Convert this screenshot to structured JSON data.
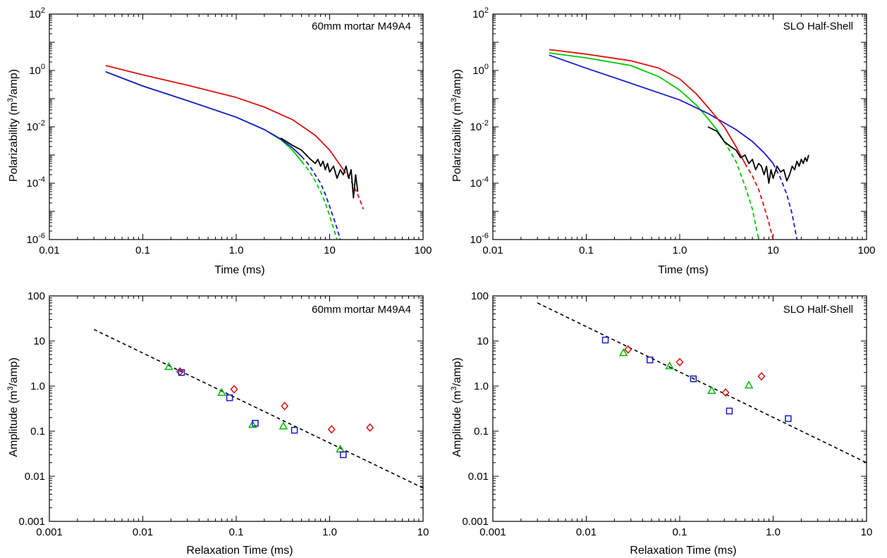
{
  "chart_data": [
    {
      "type": "line",
      "annotation": "60mm mortar M49A4",
      "xlabel": "Time (ms)",
      "ylabel_main": "Polarizability (m",
      "ylabel_sup": "3",
      "ylabel_tail": "/amp)",
      "xscale": "log",
      "yscale": "log",
      "xlim": [
        0.01,
        100
      ],
      "ylim": [
        1e-06,
        100
      ],
      "x_ticks": [
        {
          "v": 0.01,
          "label": "0.01"
        },
        {
          "v": 0.1,
          "label": "0.1"
        },
        {
          "v": 1,
          "label": "1.0"
        },
        {
          "v": 10,
          "label": "10"
        },
        {
          "v": 100,
          "label": "100"
        }
      ],
      "y_ticks": [
        {
          "v": 1e-06,
          "base": "10",
          "exp": "-6"
        },
        {
          "v": 0.0001,
          "base": "10",
          "exp": "-4"
        },
        {
          "v": 0.01,
          "base": "10",
          "exp": "-2"
        },
        {
          "v": 1,
          "base": "10",
          "exp": "0"
        },
        {
          "v": 100,
          "base": "10",
          "exp": "2"
        }
      ],
      "series": [
        {
          "color": "#00cc00",
          "dash": false,
          "points": [
            [
              0.04,
              0.9
            ],
            [
              0.1,
              0.28
            ],
            [
              0.3,
              0.085
            ],
            [
              1,
              0.022
            ],
            [
              2,
              0.008
            ],
            [
              3,
              0.0035
            ],
            [
              4,
              0.0015
            ],
            [
              5,
              0.0006
            ]
          ]
        },
        {
          "color": "#00cc00",
          "dash": true,
          "points": [
            [
              5,
              0.0006
            ],
            [
              6,
              0.00028
            ],
            [
              7,
              0.00012
            ],
            [
              8,
              5e-05
            ],
            [
              9,
              2e-05
            ],
            [
              10,
              7e-06
            ],
            [
              11,
              2.5e-06
            ],
            [
              12,
              1e-06
            ]
          ]
        },
        {
          "color": "#1a1acc",
          "dash": false,
          "points": [
            [
              0.04,
              0.9
            ],
            [
              0.1,
              0.28
            ],
            [
              0.3,
              0.085
            ],
            [
              1,
              0.022
            ],
            [
              2,
              0.008
            ],
            [
              3,
              0.0037
            ],
            [
              4,
              0.0018
            ],
            [
              5,
              0.0009
            ]
          ]
        },
        {
          "color": "#1a1acc",
          "dash": true,
          "points": [
            [
              5,
              0.0009
            ],
            [
              6,
              0.00045
            ],
            [
              7,
              0.0002
            ],
            [
              8,
              0.0001
            ],
            [
              9,
              4e-05
            ],
            [
              10,
              1.5e-05
            ],
            [
              11,
              6e-06
            ],
            [
              12,
              2.5e-06
            ],
            [
              13,
              1e-06
            ]
          ]
        },
        {
          "color": "#dd1111",
          "dash": false,
          "points": [
            [
              0.04,
              1.5
            ],
            [
              0.1,
              0.7
            ],
            [
              0.3,
              0.3
            ],
            [
              1,
              0.11
            ],
            [
              2,
              0.05
            ],
            [
              4,
              0.018
            ],
            [
              7,
              0.005
            ],
            [
              10,
              0.0015
            ],
            [
              14,
              0.0003
            ]
          ]
        },
        {
          "color": "#dd1111",
          "dash": true,
          "points": [
            [
              14,
              0.0003
            ],
            [
              17,
              0.00012
            ],
            [
              20,
              4e-05
            ],
            [
              23,
              1.2e-05
            ]
          ]
        },
        {
          "color": "#000000",
          "dash": false,
          "points": [
            [
              3,
              0.004
            ],
            [
              4,
              0.0022
            ],
            [
              5,
              0.0015
            ],
            [
              6,
              0.0008
            ],
            [
              7,
              0.0005
            ],
            [
              7.5,
              0.0007
            ],
            [
              8,
              0.0004
            ],
            [
              8.5,
              0.0006
            ],
            [
              9,
              0.0003
            ],
            [
              9.5,
              0.0005
            ],
            [
              10,
              0.00025
            ],
            [
              11,
              0.0004
            ],
            [
              12,
              0.00015
            ],
            [
              13,
              0.0003
            ],
            [
              14,
              0.0002
            ],
            [
              15,
              0.0004
            ],
            [
              16,
              0.00015
            ],
            [
              17,
              0.0003
            ],
            [
              18,
              3e-05
            ],
            [
              19,
              0.0002
            ],
            [
              20,
              5e-05
            ]
          ]
        }
      ]
    },
    {
      "type": "line",
      "annotation": "SLO Half-Shell",
      "xlabel": "Time (ms)",
      "ylabel_main": "Polarizability (m",
      "ylabel_sup": "3",
      "ylabel_tail": "/amp)",
      "xscale": "log",
      "yscale": "log",
      "xlim": [
        0.01,
        100
      ],
      "ylim": [
        1e-06,
        100
      ],
      "x_ticks": [
        {
          "v": 0.01,
          "label": "0.01"
        },
        {
          "v": 0.1,
          "label": "0.1"
        },
        {
          "v": 1,
          "label": "1.0"
        },
        {
          "v": 10,
          "label": "10"
        },
        {
          "v": 100,
          "label": "100"
        }
      ],
      "y_ticks": [
        {
          "v": 1e-06,
          "base": "10",
          "exp": "-6"
        },
        {
          "v": 0.0001,
          "base": "10",
          "exp": "-4"
        },
        {
          "v": 0.01,
          "base": "10",
          "exp": "-2"
        },
        {
          "v": 1,
          "base": "10",
          "exp": "0"
        },
        {
          "v": 100,
          "base": "10",
          "exp": "2"
        }
      ],
      "series": [
        {
          "color": "#00cc00",
          "dash": false,
          "points": [
            [
              0.04,
              4.2
            ],
            [
              0.1,
              2.8
            ],
            [
              0.3,
              1.5
            ],
            [
              0.6,
              0.6
            ],
            [
              1,
              0.2
            ],
            [
              1.5,
              0.06
            ],
            [
              2,
              0.02
            ],
            [
              2.5,
              0.008
            ],
            [
              3,
              0.003
            ]
          ]
        },
        {
          "color": "#00cc00",
          "dash": true,
          "points": [
            [
              3,
              0.003
            ],
            [
              4,
              0.0006
            ],
            [
              5,
              8e-05
            ],
            [
              6,
              1.2e-05
            ],
            [
              7,
              1e-06
            ]
          ]
        },
        {
          "color": "#1a1acc",
          "dash": false,
          "points": [
            [
              0.04,
              3.5
            ],
            [
              0.1,
              1.2
            ],
            [
              0.3,
              0.35
            ],
            [
              0.6,
              0.16
            ],
            [
              1,
              0.09
            ],
            [
              2,
              0.03
            ],
            [
              4,
              0.008
            ],
            [
              6,
              0.003
            ],
            [
              8,
              0.0012
            ],
            [
              10,
              0.0005
            ]
          ]
        },
        {
          "color": "#1a1acc",
          "dash": true,
          "points": [
            [
              10,
              0.0005
            ],
            [
              12,
              0.00015
            ],
            [
              14,
              4e-05
            ],
            [
              16,
              8e-06
            ],
            [
              18,
              1e-06
            ]
          ]
        },
        {
          "color": "#dd1111",
          "dash": false,
          "points": [
            [
              0.04,
              5.5
            ],
            [
              0.1,
              3.8
            ],
            [
              0.3,
              2.2
            ],
            [
              0.6,
              1.2
            ],
            [
              1,
              0.5
            ],
            [
              1.5,
              0.15
            ],
            [
              2,
              0.05
            ],
            [
              3,
              0.01
            ],
            [
              4,
              0.002
            ],
            [
              5,
              0.0005
            ]
          ]
        },
        {
          "color": "#dd1111",
          "dash": true,
          "points": [
            [
              5,
              0.0005
            ],
            [
              6,
              0.00018
            ],
            [
              7,
              6e-05
            ],
            [
              8,
              1.5e-05
            ],
            [
              9,
              4e-06
            ],
            [
              10,
              1e-06
            ]
          ]
        },
        {
          "color": "#000000",
          "dash": false,
          "points": [
            [
              2,
              0.01
            ],
            [
              2.5,
              0.007
            ],
            [
              3,
              0.003
            ],
            [
              3.5,
              0.002
            ],
            [
              4,
              0.0015
            ],
            [
              4.5,
              0.0008
            ],
            [
              5,
              0.001
            ],
            [
              5.5,
              0.0005
            ],
            [
              6,
              0.0007
            ],
            [
              6.5,
              0.0003
            ],
            [
              7,
              0.0005
            ],
            [
              7.5,
              0.0004
            ],
            [
              8,
              0.0002
            ],
            [
              8.5,
              0.0004
            ],
            [
              9,
              0.0001
            ],
            [
              9.5,
              0.0003
            ],
            [
              10,
              0.00015
            ],
            [
              11,
              0.0004
            ],
            [
              12,
              0.00025
            ],
            [
              13,
              0.0003
            ],
            [
              14,
              0.00012
            ],
            [
              15,
              0.0002
            ],
            [
              16,
              0.0004
            ],
            [
              17,
              0.0003
            ],
            [
              18,
              0.0006
            ],
            [
              19,
              0.0004
            ],
            [
              20,
              0.0007
            ],
            [
              21,
              0.0005
            ],
            [
              22,
              0.0008
            ],
            [
              23,
              0.0006
            ],
            [
              24,
              0.001
            ]
          ]
        }
      ]
    },
    {
      "type": "scatter",
      "annotation": "60mm mortar M49A4",
      "xlabel": "Relaxation Time (ms)",
      "ylabel_main": "Amplitude (m",
      "ylabel_sup": "3",
      "ylabel_tail": "/amp)",
      "xscale": "log",
      "yscale": "log",
      "xlim": [
        0.001,
        10
      ],
      "ylim": [
        0.001,
        100
      ],
      "x_ticks": [
        {
          "v": 0.001,
          "label": "0.001"
        },
        {
          "v": 0.01,
          "label": "0.01"
        },
        {
          "v": 0.1,
          "label": "0.1"
        },
        {
          "v": 1,
          "label": "1.0"
        },
        {
          "v": 10,
          "label": "10"
        }
      ],
      "y_ticks": [
        {
          "v": 0.001,
          "label": "0.001"
        },
        {
          "v": 0.01,
          "label": "0.01"
        },
        {
          "v": 0.1,
          "label": "0.1"
        },
        {
          "v": 1,
          "label": "1.0"
        },
        {
          "v": 10,
          "label": "10"
        },
        {
          "v": 100,
          "label": "100"
        }
      ],
      "fit_line": {
        "color": "#000000",
        "points": [
          [
            0.003,
            18
          ],
          [
            10,
            0.0055
          ]
        ]
      },
      "series": [
        {
          "marker": "diamond",
          "color": "#dd1111",
          "points": [
            [
              0.025,
              2.1
            ],
            [
              0.095,
              0.85
            ],
            [
              0.33,
              0.36
            ],
            [
              1.05,
              0.11
            ],
            [
              2.7,
              0.12
            ]
          ]
        },
        {
          "marker": "triangle",
          "color": "#00bb00",
          "points": [
            [
              0.019,
              2.7
            ],
            [
              0.07,
              0.72
            ],
            [
              0.15,
              0.14
            ],
            [
              0.32,
              0.13
            ],
            [
              1.3,
              0.04
            ]
          ]
        },
        {
          "marker": "square",
          "color": "#1a1acc",
          "points": [
            [
              0.026,
              2.0
            ],
            [
              0.085,
              0.55
            ],
            [
              0.16,
              0.15
            ],
            [
              0.42,
              0.105
            ],
            [
              1.4,
              0.03
            ]
          ]
        }
      ]
    },
    {
      "type": "scatter",
      "annotation": "SLO Half-Shell",
      "xlabel": "Relaxation Time (ms)",
      "ylabel_main": "Amplitude (m",
      "ylabel_sup": "3",
      "ylabel_tail": "/amp)",
      "xscale": "log",
      "yscale": "log",
      "xlim": [
        0.001,
        10
      ],
      "ylim": [
        0.001,
        100
      ],
      "x_ticks": [
        {
          "v": 0.001,
          "label": "0.001"
        },
        {
          "v": 0.01,
          "label": "0.01"
        },
        {
          "v": 0.1,
          "label": "0.1"
        },
        {
          "v": 1,
          "label": "1.0"
        },
        {
          "v": 10,
          "label": "10"
        }
      ],
      "y_ticks": [
        {
          "v": 0.001,
          "label": "0.001"
        },
        {
          "v": 0.01,
          "label": "0.01"
        },
        {
          "v": 0.1,
          "label": "0.1"
        },
        {
          "v": 1,
          "label": "1.0"
        },
        {
          "v": 10,
          "label": "10"
        },
        {
          "v": 100,
          "label": "100"
        }
      ],
      "fit_line": {
        "color": "#000000",
        "points": [
          [
            0.003,
            70
          ],
          [
            10,
            0.02
          ]
        ]
      },
      "series": [
        {
          "marker": "diamond",
          "color": "#dd1111",
          "points": [
            [
              0.028,
              6.5
            ],
            [
              0.1,
              3.4
            ],
            [
              0.31,
              0.72
            ],
            [
              0.75,
              1.65
            ]
          ]
        },
        {
          "marker": "triangle",
          "color": "#00bb00",
          "points": [
            [
              0.025,
              5.5
            ],
            [
              0.078,
              2.8
            ],
            [
              0.22,
              0.8
            ],
            [
              0.55,
              1.05
            ]
          ]
        },
        {
          "marker": "square",
          "color": "#1a1acc",
          "points": [
            [
              0.016,
              10.5
            ],
            [
              0.048,
              3.8
            ],
            [
              0.14,
              1.45
            ],
            [
              0.34,
              0.28
            ],
            [
              1.45,
              0.19
            ]
          ]
        }
      ]
    }
  ]
}
